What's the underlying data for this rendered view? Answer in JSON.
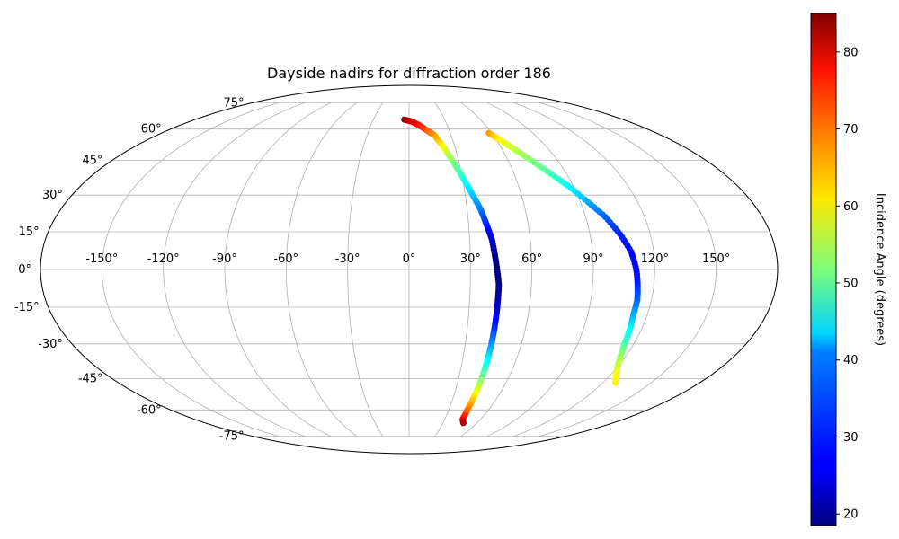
{
  "chart_data": {
    "type": "scatter",
    "projection": "mollweide",
    "title": "Dayside nadirs for diffraction order 186",
    "grid": true,
    "longitude_ticks": [
      "-150°",
      "-120°",
      "-90°",
      "-60°",
      "-30°",
      "0°",
      "30°",
      "60°",
      "90°",
      "120°",
      "150°"
    ],
    "latitude_ticks": [
      "-75°",
      "-60°",
      "-45°",
      "-30°",
      "-15°",
      "0°",
      "15°",
      "30°",
      "45°",
      "60°",
      "75°"
    ],
    "longitude_tick_values": [
      -150,
      -120,
      -90,
      -60,
      -30,
      0,
      30,
      60,
      90,
      120,
      150
    ],
    "latitude_tick_values": [
      -75,
      -60,
      -45,
      -30,
      -15,
      0,
      15,
      30,
      45,
      60,
      75
    ],
    "colorbar": {
      "label": "Incidence Angle (degrees)",
      "colormap": "jet",
      "range": [
        18.5,
        85
      ],
      "ticks": [
        "20",
        "30",
        "40",
        "50",
        "60",
        "70",
        "80"
      ],
      "tick_values": [
        20,
        30,
        40,
        50,
        60,
        70,
        80
      ]
    },
    "series": [
      {
        "points": [
          {
            "lon": -4,
            "lat": 65,
            "incidence": 84
          },
          {
            "lon": 2,
            "lat": 64,
            "incidence": 80
          },
          {
            "lon": 8,
            "lat": 62,
            "incidence": 76
          },
          {
            "lon": 14,
            "lat": 59,
            "incidence": 71
          },
          {
            "lon": 18,
            "lat": 57,
            "incidence": 67
          },
          {
            "lon": 22,
            "lat": 52,
            "incidence": 61
          },
          {
            "lon": 25,
            "lat": 47,
            "incidence": 55
          },
          {
            "lon": 28,
            "lat": 42,
            "incidence": 50
          },
          {
            "lon": 31,
            "lat": 36,
            "incidence": 45
          },
          {
            "lon": 34,
            "lat": 30,
            "incidence": 40
          },
          {
            "lon": 37,
            "lat": 24,
            "incidence": 35
          },
          {
            "lon": 39,
            "lat": 18,
            "incidence": 29
          },
          {
            "lon": 41,
            "lat": 12,
            "incidence": 24
          },
          {
            "lon": 42,
            "lat": 6,
            "incidence": 20
          },
          {
            "lon": 43,
            "lat": 0,
            "incidence": 18.5
          },
          {
            "lon": 44,
            "lat": -6,
            "incidence": 19
          },
          {
            "lon": 44,
            "lat": -12,
            "incidence": 21
          },
          {
            "lon": 44,
            "lat": -18,
            "incidence": 25
          },
          {
            "lon": 44,
            "lat": -24,
            "incidence": 30
          },
          {
            "lon": 44,
            "lat": -30,
            "incidence": 36
          },
          {
            "lon": 44,
            "lat": -36,
            "incidence": 42
          },
          {
            "lon": 44,
            "lat": -42,
            "incidence": 48
          },
          {
            "lon": 44,
            "lat": -48,
            "incidence": 55
          },
          {
            "lon": 44,
            "lat": -54,
            "incidence": 62
          },
          {
            "lon": 44,
            "lat": -60,
            "incidence": 69
          },
          {
            "lon": 45,
            "lat": -65,
            "incidence": 76
          },
          {
            "lon": 48,
            "lat": -67,
            "incidence": 82
          }
        ]
      },
      {
        "points": [
          {
            "lon": 58,
            "lat": 58,
            "incidence": 67
          },
          {
            "lon": 62,
            "lat": 55,
            "incidence": 61
          },
          {
            "lon": 67,
            "lat": 51,
            "incidence": 57
          },
          {
            "lon": 73,
            "lat": 46,
            "incidence": 53
          },
          {
            "lon": 80,
            "lat": 40,
            "incidence": 49
          },
          {
            "lon": 87,
            "lat": 34,
            "incidence": 44
          },
          {
            "lon": 94,
            "lat": 27,
            "incidence": 38
          },
          {
            "lon": 100,
            "lat": 21,
            "incidence": 33
          },
          {
            "lon": 105,
            "lat": 14,
            "incidence": 29
          },
          {
            "lon": 109,
            "lat": 7,
            "incidence": 27
          },
          {
            "lon": 111,
            "lat": 0,
            "incidence": 27
          },
          {
            "lon": 112,
            "lat": -6,
            "incidence": 29
          },
          {
            "lon": 113,
            "lat": -12,
            "incidence": 33
          },
          {
            "lon": 113,
            "lat": -18,
            "incidence": 38
          },
          {
            "lon": 114,
            "lat": -24,
            "incidence": 43
          },
          {
            "lon": 115,
            "lat": -30,
            "incidence": 48
          },
          {
            "lon": 117,
            "lat": -35,
            "incidence": 53
          },
          {
            "lon": 120,
            "lat": -40,
            "incidence": 57
          },
          {
            "lon": 124,
            "lat": -44,
            "incidence": 60
          },
          {
            "lon": 128,
            "lat": -47,
            "incidence": 61
          }
        ]
      }
    ]
  }
}
